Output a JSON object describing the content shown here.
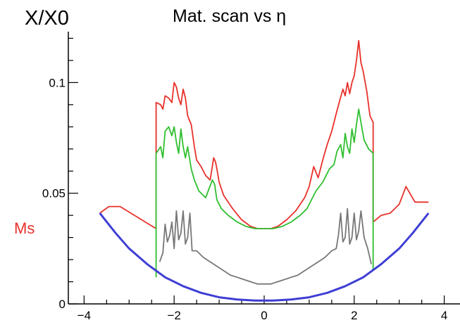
{
  "chart_data": {
    "type": "line",
    "title": "Mat. scan vs η",
    "ylabel": "X/X0",
    "xlabel": "",
    "xlim": [
      -4.35,
      4.35
    ],
    "ylim": [
      0,
      0.123
    ],
    "x_ticks": [
      "−4",
      "−2",
      "0",
      "2",
      "4"
    ],
    "y_ticks": [
      {
        "value": 0,
        "label": "0"
      },
      {
        "value": 0.05,
        "label": "0.05"
      },
      {
        "value": 0.1,
        "label": "0.1"
      }
    ],
    "side_label": "Ms",
    "grid": false,
    "series": [
      {
        "color": "#e8312b",
        "x": [
          -3.65,
          -3.45,
          -3.2,
          -2.4,
          -2.4,
          -2.3,
          -2.25,
          -2.2,
          -2.12,
          -2.05,
          -2.0,
          -1.95,
          -1.9,
          -1.85,
          -1.8,
          -1.75,
          -1.7,
          -1.62,
          -1.55,
          -1.5,
          -1.4,
          -1.3,
          -1.2,
          -1.12,
          -1.08,
          -1.05,
          -1.0,
          -0.9,
          -0.7,
          -0.5,
          -0.3,
          -0.15,
          0,
          0.15,
          0.3,
          0.5,
          0.7,
          0.9,
          1.0,
          1.1,
          1.2,
          1.3,
          1.4,
          1.5,
          1.6,
          1.68,
          1.75,
          1.8,
          1.85,
          1.9,
          1.95,
          2.0,
          2.05,
          2.1,
          2.15,
          2.2,
          2.28,
          2.35,
          2.42,
          2.42,
          2.6,
          2.8,
          3.0,
          3.15,
          3.35,
          3.65
        ],
        "y": [
          0.041,
          0.044,
          0.044,
          0.034,
          0.091,
          0.09,
          0.088,
          0.094,
          0.093,
          0.091,
          0.1,
          0.098,
          0.093,
          0.09,
          0.097,
          0.093,
          0.085,
          0.081,
          0.071,
          0.065,
          0.062,
          0.058,
          0.056,
          0.066,
          0.064,
          0.061,
          0.055,
          0.049,
          0.043,
          0.038,
          0.035,
          0.034,
          0.034,
          0.034,
          0.035,
          0.038,
          0.042,
          0.048,
          0.053,
          0.062,
          0.057,
          0.065,
          0.072,
          0.078,
          0.086,
          0.092,
          0.097,
          0.094,
          0.1,
          0.095,
          0.1,
          0.103,
          0.11,
          0.119,
          0.109,
          0.105,
          0.096,
          0.085,
          0.082,
          0.037,
          0.04,
          0.041,
          0.045,
          0.053,
          0.046,
          0.046
        ]
      },
      {
        "color": "#2fbf2f",
        "x": [
          -2.4,
          -2.4,
          -2.3,
          -2.25,
          -2.2,
          -2.12,
          -2.05,
          -2.0,
          -1.95,
          -1.9,
          -1.85,
          -1.8,
          -1.75,
          -1.7,
          -1.62,
          -1.55,
          -1.45,
          -1.3,
          -1.15,
          -1.1,
          -1.05,
          -0.95,
          -0.8,
          -0.6,
          -0.4,
          -0.2,
          0,
          0.2,
          0.4,
          0.6,
          0.8,
          0.95,
          1.05,
          1.15,
          1.3,
          1.45,
          1.55,
          1.62,
          1.7,
          1.75,
          1.8,
          1.85,
          1.9,
          1.95,
          2.0,
          2.05,
          2.1,
          2.15,
          2.22,
          2.32,
          2.42,
          2.42
        ],
        "y": [
          0.012,
          0.068,
          0.071,
          0.066,
          0.078,
          0.08,
          0.076,
          0.08,
          0.073,
          0.068,
          0.079,
          0.071,
          0.066,
          0.071,
          0.061,
          0.056,
          0.051,
          0.048,
          0.056,
          0.054,
          0.047,
          0.043,
          0.04,
          0.037,
          0.035,
          0.034,
          0.034,
          0.034,
          0.035,
          0.037,
          0.04,
          0.043,
          0.047,
          0.051,
          0.055,
          0.061,
          0.063,
          0.069,
          0.072,
          0.066,
          0.077,
          0.071,
          0.068,
          0.079,
          0.073,
          0.081,
          0.088,
          0.082,
          0.074,
          0.07,
          0.068,
          0.015
        ]
      },
      {
        "color": "#777777",
        "x": [
          -2.32,
          -2.25,
          -2.2,
          -2.15,
          -2.1,
          -2.05,
          -2.0,
          -1.95,
          -1.9,
          -1.85,
          -1.8,
          -1.75,
          -1.7,
          -1.65,
          -1.6,
          -1.5,
          -1.35,
          -1.2,
          -1.05,
          -0.9,
          -0.75,
          -0.6,
          -0.45,
          -0.3,
          -0.15,
          0,
          0.15,
          0.3,
          0.45,
          0.6,
          0.75,
          0.9,
          1.05,
          1.2,
          1.35,
          1.5,
          1.6,
          1.65,
          1.7,
          1.75,
          1.8,
          1.85,
          1.9,
          1.95,
          2.0,
          2.05,
          2.1,
          2.15,
          2.22,
          2.3,
          2.38
        ],
        "y": [
          0.019,
          0.023,
          0.036,
          0.028,
          0.031,
          0.037,
          0.025,
          0.042,
          0.029,
          0.032,
          0.042,
          0.027,
          0.03,
          0.041,
          0.024,
          0.024,
          0.021,
          0.019,
          0.017,
          0.015,
          0.013,
          0.012,
          0.011,
          0.01,
          0.009,
          0.009,
          0.009,
          0.01,
          0.011,
          0.012,
          0.013,
          0.015,
          0.017,
          0.019,
          0.021,
          0.024,
          0.025,
          0.031,
          0.041,
          0.028,
          0.03,
          0.043,
          0.027,
          0.03,
          0.041,
          0.029,
          0.033,
          0.042,
          0.03,
          0.025,
          0.018
        ]
      },
      {
        "color": "#3e3ed4",
        "x": [
          -3.65,
          -3.3,
          -3.0,
          -2.6,
          -2.2,
          -1.8,
          -1.4,
          -1.0,
          -0.6,
          -0.2,
          0,
          0.2,
          0.6,
          1.0,
          1.4,
          1.8,
          2.2,
          2.6,
          3.0,
          3.3,
          3.65
        ],
        "y": [
          0.041,
          0.032,
          0.025,
          0.018,
          0.012,
          0.008,
          0.005,
          0.003,
          0.002,
          0.0015,
          0.0015,
          0.0015,
          0.002,
          0.003,
          0.005,
          0.008,
          0.012,
          0.018,
          0.025,
          0.032,
          0.041
        ]
      }
    ]
  }
}
